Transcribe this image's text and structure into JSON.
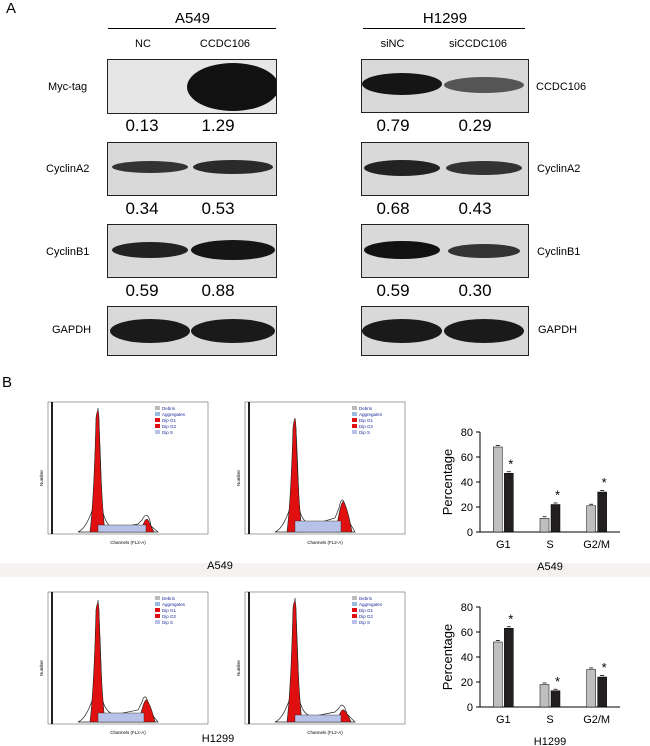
{
  "panel_a": {
    "letter": "A",
    "cell_lines": [
      {
        "name": "A549",
        "lanes": [
          "NC",
          "CCDC106"
        ]
      },
      {
        "name": "H1299",
        "lanes": [
          "siNC",
          "siCCDC106"
        ]
      }
    ],
    "left_labels": [
      "Myc-tag",
      "CyclinA2",
      "CyclinB1",
      "GAPDH"
    ],
    "right_labels": [
      "CCDC106",
      "CyclinA2",
      "CyclinB1",
      "GAPDH"
    ],
    "quant_rows": [
      [
        "0.13",
        "1.29",
        "0.79",
        "0.29"
      ],
      [
        "0.34",
        "0.53",
        "0.68",
        "0.43"
      ],
      [
        "0.59",
        "0.88",
        "0.59",
        "0.30"
      ]
    ]
  },
  "panel_b": {
    "letter": "B",
    "histogram_axis": {
      "xlabel": "Channels (FL2-A)",
      "ylabel": "Number"
    },
    "histogram_legend": [
      "Debris",
      "Aggregates",
      "Dip G1",
      "Dip G2",
      "Dip S"
    ],
    "row_labels": [
      "A549",
      "H1299"
    ]
  },
  "chart_data": [
    {
      "type": "bar",
      "title": "",
      "xlabel": "",
      "ylabel": "Percentage",
      "ylim": [
        0,
        80
      ],
      "yticks": [
        0,
        20,
        40,
        60,
        80
      ],
      "categories": [
        "G1",
        "S",
        "G2/M"
      ],
      "series": [
        {
          "color": "#bfbfbf",
          "values": [
            68,
            11,
            21
          ]
        },
        {
          "color": "#231f20",
          "values": [
            47,
            22,
            32
          ]
        }
      ],
      "significance": [
        "*",
        "*",
        "*"
      ],
      "caption": "A549"
    },
    {
      "type": "bar",
      "title": "",
      "xlabel": "",
      "ylabel": "Percentage",
      "ylim": [
        0,
        80
      ],
      "yticks": [
        0,
        20,
        40,
        60,
        80
      ],
      "categories": [
        "G1",
        "S",
        "G2/M"
      ],
      "series": [
        {
          "color": "#bfbfbf",
          "values": [
            52,
            18,
            30
          ]
        },
        {
          "color": "#231f20",
          "values": [
            63,
            13,
            24
          ]
        }
      ],
      "significance": [
        "*",
        "*",
        "*"
      ],
      "caption": "H1299"
    }
  ]
}
